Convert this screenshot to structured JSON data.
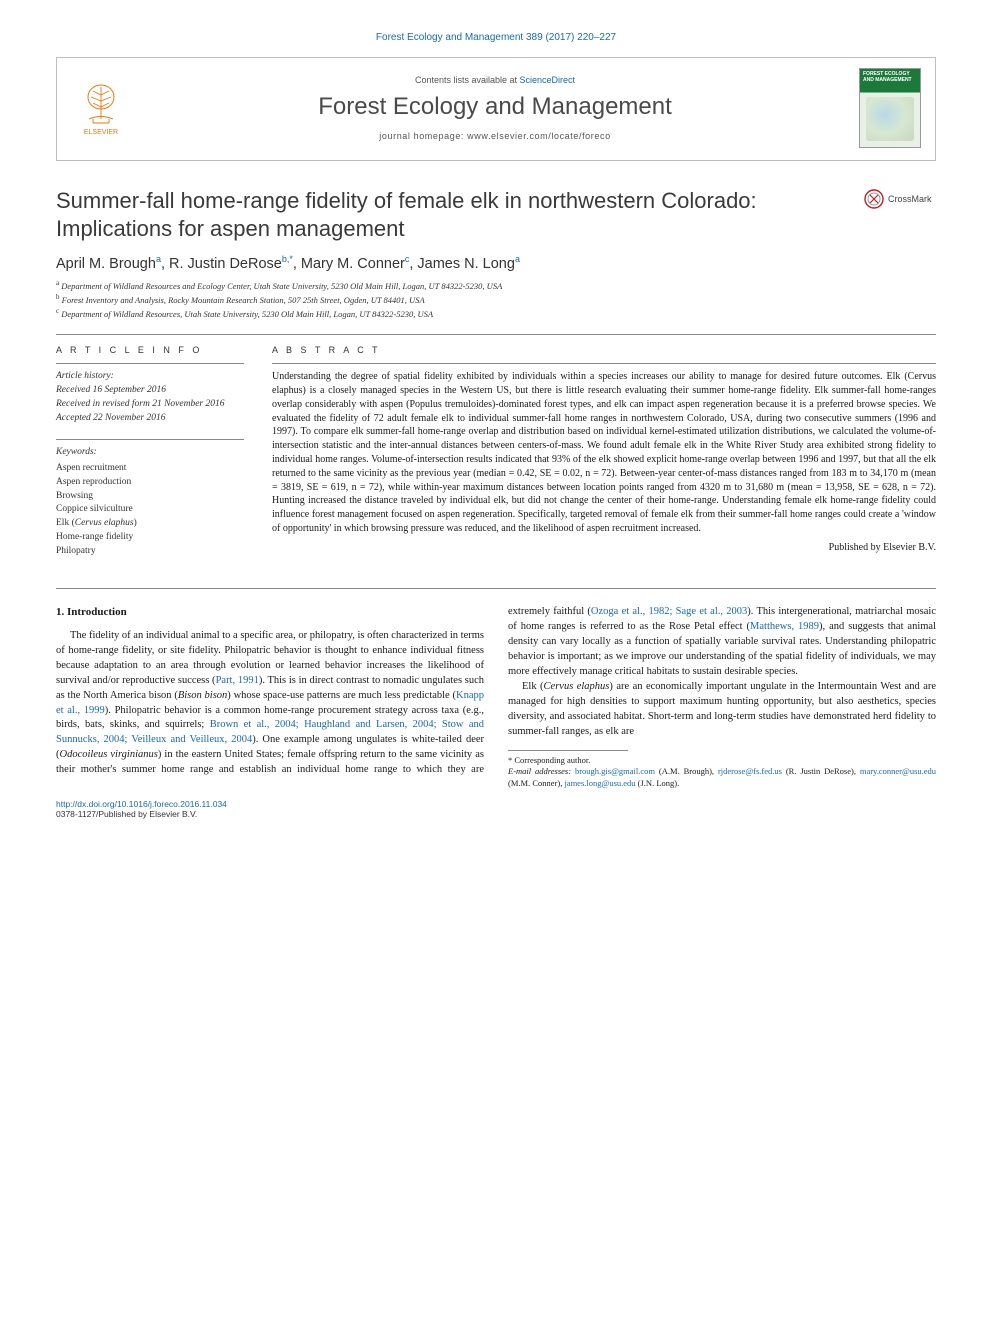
{
  "header": {
    "citation": "Forest Ecology and Management 389 (2017) 220–227",
    "contents_line_a": "Contents lists available at ",
    "contents_line_b": "ScienceDirect",
    "journal_name": "Forest Ecology and Management",
    "homepage_label": "journal homepage: ",
    "homepage_url": "www.elsevier.com/locate/foreco",
    "publisher": "ELSEVIER",
    "cover_title": "FOREST ECOLOGY AND MANAGEMENT"
  },
  "crossmark": "CrossMark",
  "article": {
    "title": "Summer-fall home-range fidelity of female elk in northwestern Colorado: Implications for aspen management",
    "authors_html": "April M. Brough<sup>a</sup>, R. Justin DeRose<sup>b,*</sup>, Mary M. Conner<sup>c</sup>, James N. Long<sup>a</sup>",
    "affiliations": {
      "a": "Department of Wildland Resources and Ecology Center, Utah State University, 5230 Old Main Hill, Logan, UT 84322-5230, USA",
      "b": "Forest Inventory and Analysis, Rocky Mountain Research Station, 507 25th Street, Ogden, UT 84401, USA",
      "c": "Department of Wildland Resources, Utah State University, 5230 Old Main Hill, Logan, UT 84322-5230, USA"
    }
  },
  "info": {
    "heading": "A R T I C L E   I N F O",
    "history_label": "Article history:",
    "history": [
      "Received 16 September 2016",
      "Received in revised form 21 November 2016",
      "Accepted 22 November 2016"
    ],
    "keywords_label": "Keywords:",
    "keywords": [
      "Aspen recruitment",
      "Aspen reproduction",
      "Browsing",
      "Coppice silviculture",
      "Elk (Cervus elaphus)",
      "Home-range fidelity",
      "Philopatry"
    ]
  },
  "abstract": {
    "heading": "A B S T R A C T",
    "text": "Understanding the degree of spatial fidelity exhibited by individuals within a species increases our ability to manage for desired future outcomes. Elk (Cervus elaphus) is a closely managed species in the Western US, but there is little research evaluating their summer home-range fidelity. Elk summer-fall home-ranges overlap considerably with aspen (Populus tremuloides)-dominated forest types, and elk can impact aspen regeneration because it is a preferred browse species. We evaluated the fidelity of 72 adult female elk to individual summer-fall home ranges in northwestern Colorado, USA, during two consecutive summers (1996 and 1997). To compare elk summer-fall home-range overlap and distribution based on individual kernel-estimated utilization distributions, we calculated the volume-of-intersection statistic and the inter-annual distances between centers-of-mass. We found adult female elk in the White River Study area exhibited strong fidelity to individual home ranges. Volume-of-intersection results indicated that 93% of the elk showed explicit home-range overlap between 1996 and 1997, but that all the elk returned to the same vicinity as the previous year (median = 0.42, SE = 0.02, n = 72). Between-year center-of-mass distances ranged from 183 m to 34,170 m (mean = 3819, SE = 619, n = 72), while within-year maximum distances between location points ranged from 4320 m to 31,680 m (mean = 13,958, SE = 628, n = 72). Hunting increased the distance traveled by individual elk, but did not change the center of their home-range. Understanding female elk home-range fidelity could influence forest management focused on aspen regeneration. Specifically, targeted removal of female elk from their summer-fall home ranges could create a 'window of opportunity' in which browsing pressure was reduced, and the likelihood of aspen recruitment increased.",
    "published_by": "Published by Elsevier B.V."
  },
  "body": {
    "section_heading": "1. Introduction",
    "col1_p1_a": "The fidelity of an individual animal to a specific area, or philopatry, is often characterized in terms of home-range fidelity, or site fidelity. Philopatric behavior is thought to enhance individual fitness because adaptation to an area through evolution or learned behavior increases the likelihood of survival and/or reproductive success (",
    "cite1": "Part, 1991",
    "col1_p1_b": "). This is in direct contrast to nomadic ungulates such as the North America bison (",
    "ital1": "Bison bison",
    "col1_p1_c": ") whose space-use patterns are much less predictable (",
    "cite2": "Knapp et al., 1999",
    "col1_p1_d": "). Philopatric behavior is a common home-range procurement strategy across taxa (e.g., birds, bats, skinks, and squirrels; ",
    "cite3": "Brown et al., 2004; Haughland and Larsen, 2004; Stow and Sunnucks, 2004; Veilleux",
    "col2_cite3b": "and Veilleux, 2004",
    "col2_p1_a": "). One example among ungulates is white-tailed deer (",
    "ital2": "Odocoileus virginianus",
    "col2_p1_b": ") in the eastern United States; female offspring return to the same vicinity as their mother's summer home range and establish an individual home range to which they are extremely faithful (",
    "cite4": "Ozoga et al., 1982; Sage et al., 2003",
    "col2_p1_c": "). This intergenerational, matriarchal mosaic of home ranges is referred to as the Rose Petal effect (",
    "cite5": "Matthews, 1989",
    "col2_p1_d": "), and suggests that animal density can vary locally as a function of spatially variable survival rates. Understanding philopatric behavior is important; as we improve our understanding of the spatial fidelity of individuals, we may more effectively manage critical habitats to sustain desirable species.",
    "col2_p2_a": "Elk (",
    "ital3": "Cervus elaphus",
    "col2_p2_b": ") are an economically important ungulate in the Intermountain West and are managed for high densities to support maximum hunting opportunity, but also aesthetics, species diversity, and associated habitat. Short-term and long-term studies have demonstrated herd fidelity to summer-fall ranges, as elk are"
  },
  "footnotes": {
    "corr": "* Corresponding author.",
    "email_label": "E-mail addresses: ",
    "emails": [
      {
        "addr": "brough.gis@gmail.com",
        "who": "(A.M. Brough)"
      },
      {
        "addr": "rjderose@fs.fed.us",
        "who": "(R. Justin DeRose)"
      },
      {
        "addr": "mary.conner@usu.edu",
        "who": "(M.M. Conner)"
      },
      {
        "addr": "james.long@usu.edu",
        "who": "(J.N. Long)"
      }
    ]
  },
  "bottom": {
    "doi": "http://dx.doi.org/10.1016/j.foreco.2016.11.034",
    "issn": "0378-1127/Published by Elsevier B.V."
  },
  "colors": {
    "link": "#1a6aa8",
    "text": "#1a1a1a",
    "rule": "#888888",
    "elsevier": "#e47911",
    "cover_green": "#1b7a3a"
  }
}
